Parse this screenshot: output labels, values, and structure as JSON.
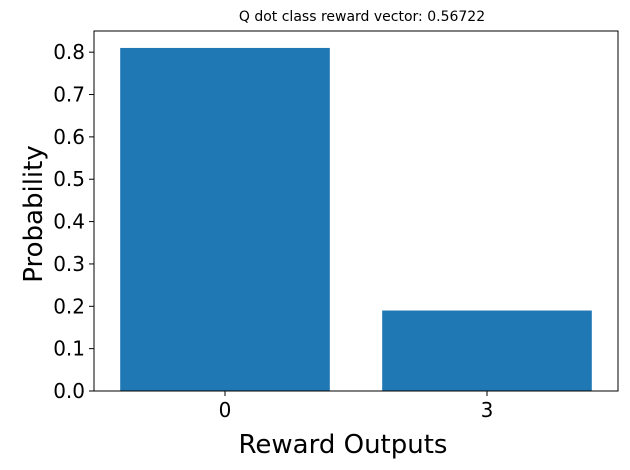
{
  "chart_data": {
    "type": "bar",
    "title": "Q dot class reward vector: 0.56722",
    "xlabel": "Reward Outputs",
    "ylabel": "Probability",
    "categories": [
      "0",
      "3"
    ],
    "values": [
      0.81,
      0.19
    ],
    "ylim": [
      0,
      0.85
    ],
    "yticks": [
      0.0,
      0.1,
      0.2,
      0.3,
      0.4,
      0.5,
      0.6,
      0.7,
      0.8
    ],
    "ytick_labels": [
      "0.0",
      "0.1",
      "0.2",
      "0.3",
      "0.4",
      "0.5",
      "0.6",
      "0.7",
      "0.8"
    ],
    "bar_color": "#1f77b4",
    "grid": false,
    "legend": "none"
  }
}
